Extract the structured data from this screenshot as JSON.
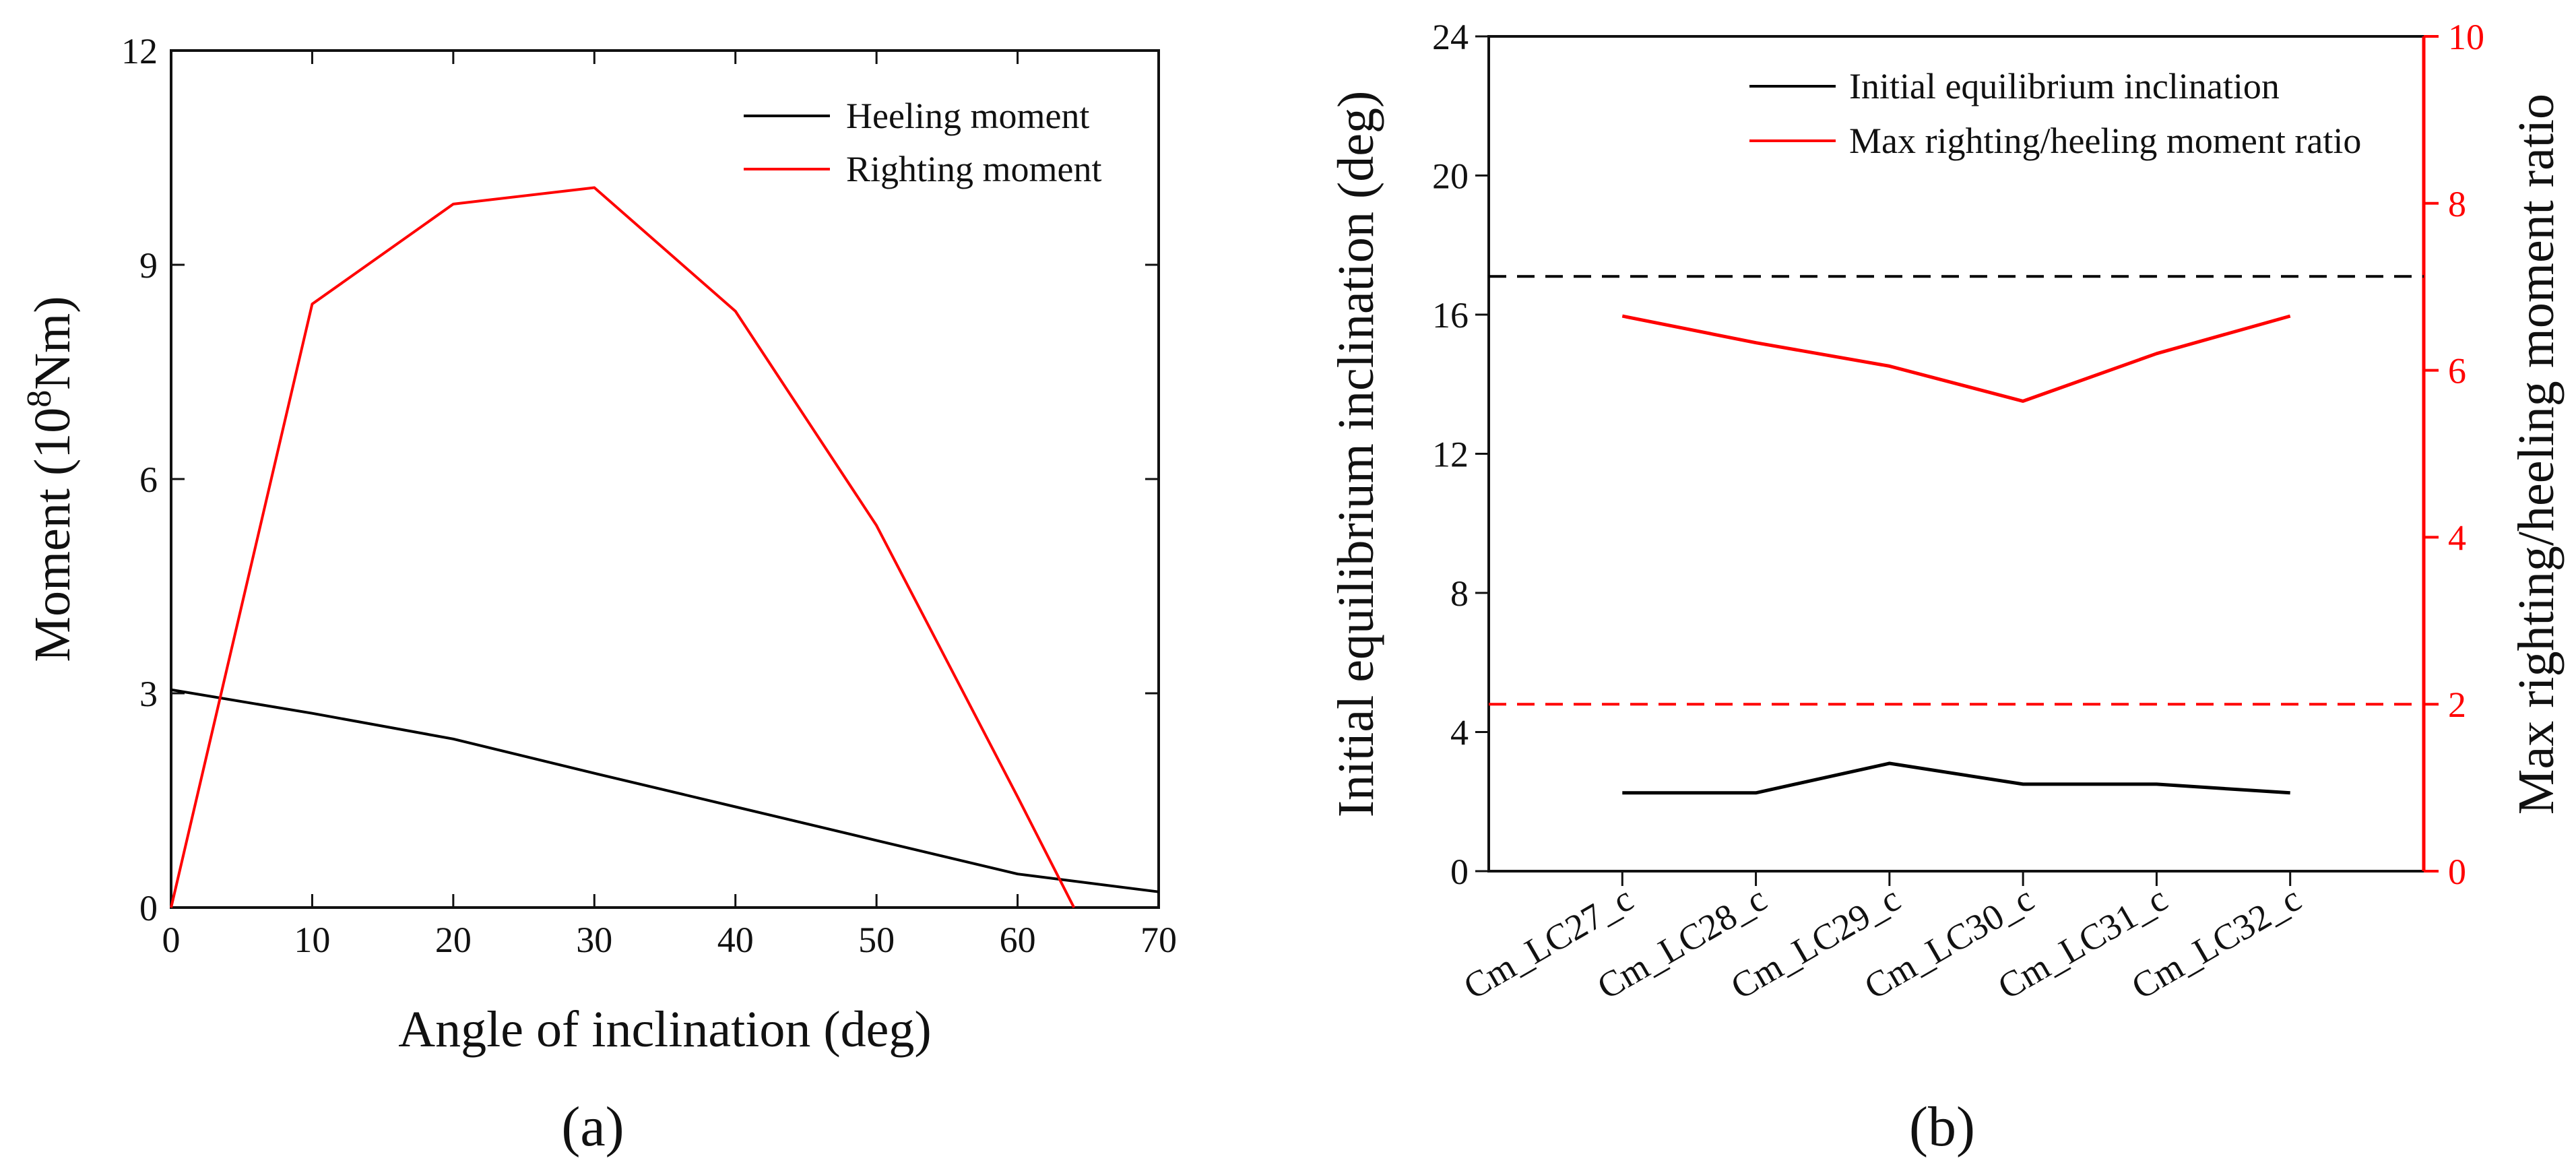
{
  "panels": [
    {
      "label": "(a)",
      "chart_data": {
        "type": "line",
        "title": "",
        "xlabel": "Angle of inclination (deg)",
        "ylabel_prefix": "Moment (10",
        "ylabel_sup": "8",
        "ylabel_suffix": "Nm)",
        "xlim": [
          0,
          70
        ],
        "ylim": [
          0,
          12
        ],
        "xticks": [
          0,
          10,
          20,
          30,
          40,
          50,
          60,
          70
        ],
        "yticks": [
          0,
          3,
          6,
          9,
          12
        ],
        "legend_position": "top-right",
        "series": [
          {
            "name": "Heeling moment",
            "color": "#000000",
            "x": [
              0,
              10,
              20,
              30,
              40,
              50,
              60,
              70
            ],
            "y": [
              3.05,
              2.72,
              2.36,
              1.88,
              1.41,
              0.94,
              0.47,
              0.22
            ]
          },
          {
            "name": "Righting moment",
            "color": "#ff0000",
            "x": [
              0,
              10,
              20,
              30,
              40,
              50,
              60,
              64
            ],
            "y": [
              0,
              8.45,
              9.85,
              10.08,
              8.35,
              5.35,
              1.55,
              0
            ]
          }
        ]
      }
    },
    {
      "label": "(b)",
      "chart_data": {
        "type": "line",
        "title": "",
        "xlabel": "",
        "ylabel": "Initial equilibrium inclination (deg)",
        "ylabel_right": "Max righting/heeling moment ratio",
        "categories": [
          "Cm_LC27_c",
          "Cm_LC28_c",
          "Cm_LC29_c",
          "Cm_LC30_c",
          "Cm_LC31_c",
          "Cm_LC32_c"
        ],
        "ylim": [
          0,
          24
        ],
        "ylim_right": [
          0,
          10
        ],
        "yticks": [
          0,
          4,
          8,
          12,
          16,
          20,
          24
        ],
        "yticks_right": [
          0,
          2,
          4,
          6,
          8,
          10
        ],
        "legend_position": "top-right",
        "series": [
          {
            "name": "Initial equilibrium inclination",
            "axis": "left",
            "color": "#000000",
            "values": [
              2.25,
              2.25,
              3.1,
              2.5,
              2.5,
              2.25
            ]
          },
          {
            "name": "Max righting/heeling moment ratio",
            "axis": "right",
            "color": "#ff0000",
            "values": [
              6.65,
              6.33,
              6.05,
              5.63,
              6.2,
              6.65
            ]
          }
        ],
        "reference_lines": [
          {
            "axis": "left",
            "value": 17.1,
            "color": "#000000",
            "style": "dashed"
          },
          {
            "axis": "right",
            "value": 2.0,
            "color": "#ff0000",
            "style": "dashed"
          }
        ]
      }
    }
  ]
}
